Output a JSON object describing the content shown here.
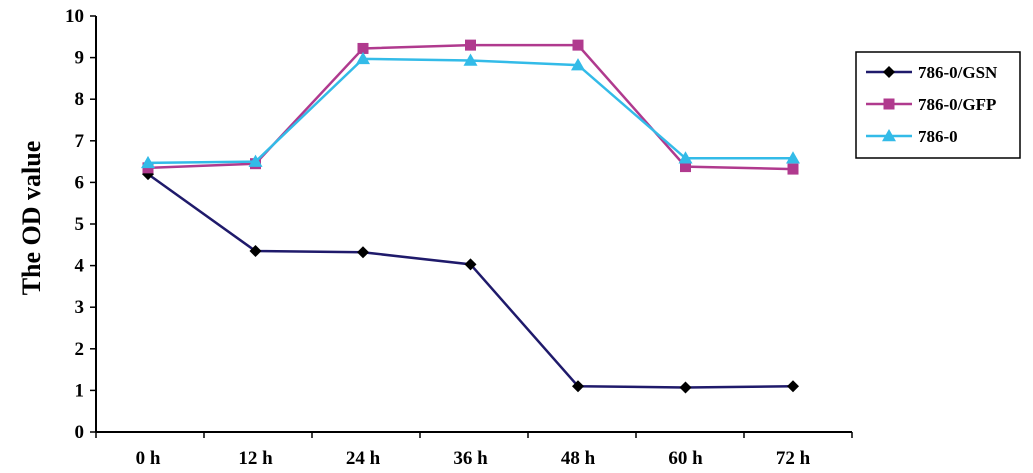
{
  "chart_data": {
    "type": "line",
    "title": "",
    "xlabel": "",
    "ylabel": "The OD value",
    "categories": [
      "0 h",
      "12 h",
      "24 h",
      "36 h",
      "48 h",
      "60 h",
      "72 h"
    ],
    "ylim": [
      0,
      10
    ],
    "yticks": [
      "0",
      "1",
      "2",
      "3",
      "4",
      "5",
      "6",
      "7",
      "8",
      "9",
      "10"
    ],
    "grid": false,
    "legend_position": "right",
    "series": [
      {
        "name": "786-0/GSN",
        "color": "#1f1a6b",
        "marker": "diamond",
        "marker_color": "#000000",
        "values": [
          6.2,
          4.35,
          4.32,
          4.03,
          1.1,
          1.07,
          1.1
        ]
      },
      {
        "name": "786-0/GFP",
        "color": "#b03a8e",
        "marker": "square",
        "marker_color": "#b03a8e",
        "values": [
          6.35,
          6.45,
          9.22,
          9.3,
          9.3,
          6.38,
          6.32
        ]
      },
      {
        "name": "786-0",
        "color": "#33bbe8",
        "marker": "triangle",
        "marker_color": "#33bbe8",
        "values": [
          6.47,
          6.5,
          8.97,
          8.93,
          8.82,
          6.58,
          6.58
        ]
      }
    ]
  }
}
